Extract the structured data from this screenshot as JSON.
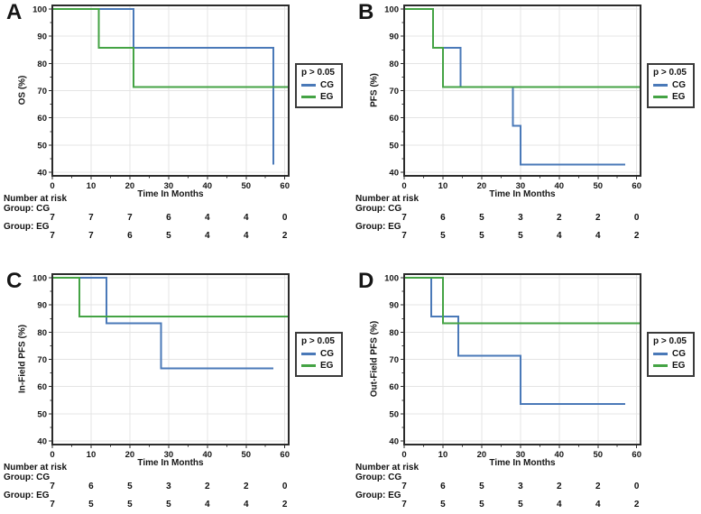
{
  "figure": {
    "type": "kaplan-meier-2x2-grid",
    "colors": {
      "cg": "#4a79b8",
      "eg": "#44a344",
      "grid": "#e4e4e4",
      "frame": "#2b2b2b",
      "text": "#161616"
    }
  },
  "chart_data": [
    {
      "panel": "A",
      "type": "line",
      "subtype": "kaplan-meier-step",
      "ylabel": "OS (%)",
      "xlabel": "Time In Months",
      "xlim": [
        0,
        61
      ],
      "ylim": [
        40,
        100
      ],
      "xticks": [
        0,
        10,
        20,
        30,
        40,
        50,
        60
      ],
      "yticks": [
        40,
        50,
        60,
        70,
        80,
        90,
        100
      ],
      "grid": true,
      "legend_position": "right",
      "p_text": "p > 0.05",
      "series": [
        {
          "name": "CG",
          "color": "#4a79b8",
          "points": [
            [
              0,
              100
            ],
            [
              21,
              100
            ],
            [
              21,
              85.7
            ],
            [
              57,
              85.7
            ],
            [
              57,
              42.9
            ]
          ]
        },
        {
          "name": "EG",
          "color": "#44a344",
          "points": [
            [
              0,
              100
            ],
            [
              12,
              100
            ],
            [
              12,
              85.7
            ],
            [
              21,
              85.7
            ],
            [
              21,
              71.4
            ],
            [
              61,
              71.4
            ]
          ]
        }
      ],
      "risk_table": {
        "header": "Number at risk",
        "groups": [
          {
            "label": "Group: CG",
            "counts": [
              7,
              7,
              7,
              6,
              4,
              4,
              0
            ]
          },
          {
            "label": "Group: EG",
            "counts": [
              7,
              7,
              6,
              5,
              4,
              4,
              2
            ]
          }
        ]
      }
    },
    {
      "panel": "B",
      "type": "line",
      "subtype": "kaplan-meier-step",
      "ylabel": "PFS (%)",
      "xlabel": "Time In Months",
      "xlim": [
        0,
        61
      ],
      "ylim": [
        40,
        100
      ],
      "xticks": [
        0,
        10,
        20,
        30,
        40,
        50,
        60
      ],
      "yticks": [
        40,
        50,
        60,
        70,
        80,
        90,
        100
      ],
      "grid": true,
      "legend_position": "right",
      "p_text": "p > 0.05",
      "series": [
        {
          "name": "CG",
          "color": "#4a79b8",
          "points": [
            [
              0,
              100
            ],
            [
              7.5,
              100
            ],
            [
              7.5,
              85.7
            ],
            [
              14.5,
              85.7
            ],
            [
              14.5,
              71.4
            ],
            [
              28,
              71.4
            ],
            [
              28,
              57.1
            ],
            [
              30,
              57.1
            ],
            [
              30,
              42.9
            ],
            [
              57,
              42.9
            ]
          ]
        },
        {
          "name": "EG",
          "color": "#44a344",
          "points": [
            [
              0,
              100
            ],
            [
              7.5,
              100
            ],
            [
              7.5,
              85.7
            ],
            [
              10,
              85.7
            ],
            [
              10,
              71.4
            ],
            [
              61,
              71.4
            ]
          ]
        }
      ],
      "risk_table": {
        "header": "Number at risk",
        "groups": [
          {
            "label": "Group: CG",
            "counts": [
              7,
              6,
              5,
              3,
              2,
              2,
              0
            ]
          },
          {
            "label": "Group: EG",
            "counts": [
              7,
              5,
              5,
              5,
              4,
              4,
              2
            ]
          }
        ]
      }
    },
    {
      "panel": "C",
      "type": "line",
      "subtype": "kaplan-meier-step",
      "ylabel": "In-Field PFS (%)",
      "xlabel": "Time In Months",
      "xlim": [
        0,
        61
      ],
      "ylim": [
        40,
        100
      ],
      "xticks": [
        0,
        10,
        20,
        30,
        40,
        50,
        60
      ],
      "yticks": [
        40,
        50,
        60,
        70,
        80,
        90,
        100
      ],
      "grid": true,
      "legend_position": "right",
      "p_text": "p > 0.05",
      "series": [
        {
          "name": "CG",
          "color": "#4a79b8",
          "points": [
            [
              0,
              100
            ],
            [
              14,
              100
            ],
            [
              14,
              83.3
            ],
            [
              28,
              83.3
            ],
            [
              28,
              66.7
            ],
            [
              57,
              66.7
            ]
          ]
        },
        {
          "name": "EG",
          "color": "#44a344",
          "points": [
            [
              0,
              100
            ],
            [
              7,
              100
            ],
            [
              7,
              85.7
            ],
            [
              61,
              85.7
            ]
          ]
        }
      ],
      "risk_table": {
        "header": "Number at risk",
        "groups": [
          {
            "label": "Group: CG",
            "counts": [
              7,
              6,
              5,
              3,
              2,
              2,
              0
            ]
          },
          {
            "label": "Group: EG",
            "counts": [
              7,
              5,
              5,
              5,
              4,
              4,
              2
            ]
          }
        ]
      }
    },
    {
      "panel": "D",
      "type": "line",
      "subtype": "kaplan-meier-step",
      "ylabel": "Out-Field PFS (%)",
      "xlabel": "Time In Months",
      "xlim": [
        0,
        61
      ],
      "ylim": [
        40,
        100
      ],
      "xticks": [
        0,
        10,
        20,
        30,
        40,
        50,
        60
      ],
      "yticks": [
        40,
        50,
        60,
        70,
        80,
        90,
        100
      ],
      "grid": true,
      "legend_position": "right",
      "p_text": "p > 0.05",
      "series": [
        {
          "name": "CG",
          "color": "#4a79b8",
          "points": [
            [
              0,
              100
            ],
            [
              7,
              100
            ],
            [
              7,
              85.7
            ],
            [
              14,
              85.7
            ],
            [
              14,
              71.4
            ],
            [
              30,
              71.4
            ],
            [
              30,
              53.6
            ],
            [
              57,
              53.6
            ]
          ]
        },
        {
          "name": "EG",
          "color": "#44a344",
          "points": [
            [
              0,
              100
            ],
            [
              10,
              100
            ],
            [
              10,
              83.3
            ],
            [
              61,
              83.3
            ]
          ]
        }
      ],
      "risk_table": {
        "header": "Number at risk",
        "groups": [
          {
            "label": "Group: CG",
            "counts": [
              7,
              6,
              5,
              3,
              2,
              2,
              0
            ]
          },
          {
            "label": "Group: EG",
            "counts": [
              7,
              5,
              5,
              5,
              4,
              4,
              2
            ]
          }
        ]
      }
    }
  ]
}
